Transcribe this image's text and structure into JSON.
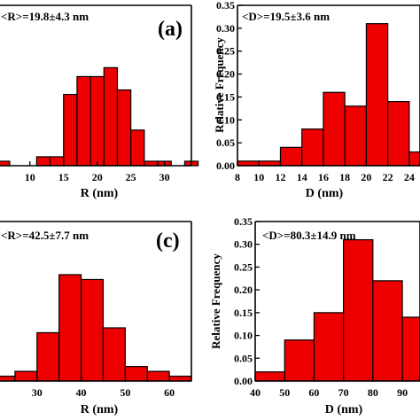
{
  "chart_data": [
    {
      "type": "bar",
      "panel": "(a)",
      "annotation": "<R>=19.8±4.3 nm",
      "xlabel": "R (nm)",
      "ylabel": "",
      "x_ticks": [
        10,
        15,
        20,
        25,
        30
      ],
      "xlim": [
        4.5,
        34
      ],
      "ylim": [
        0,
        0.36
      ],
      "bins": [
        {
          "x0": 5,
          "x1": 7,
          "value": 0.01
        },
        {
          "x0": 9,
          "x1": 11,
          "value": 0.0
        },
        {
          "x0": 11,
          "x1": 13,
          "value": 0.02
        },
        {
          "x0": 13,
          "x1": 15,
          "value": 0.02
        },
        {
          "x0": 15,
          "x1": 17,
          "value": 0.16
        },
        {
          "x0": 17,
          "x1": 19,
          "value": 0.2
        },
        {
          "x0": 19,
          "x1": 21,
          "value": 0.2
        },
        {
          "x0": 21,
          "x1": 23,
          "value": 0.22
        },
        {
          "x0": 23,
          "x1": 25,
          "value": 0.17
        },
        {
          "x0": 25,
          "x1": 27,
          "value": 0.08
        },
        {
          "x0": 27,
          "x1": 29,
          "value": 0.01
        },
        {
          "x0": 29,
          "x1": 31,
          "value": 0.01
        },
        {
          "x0": 33,
          "x1": 35,
          "value": 0.01
        }
      ]
    },
    {
      "type": "bar",
      "panel": "",
      "annotation": "<D>=19.5±3.6 nm",
      "xlabel": "D (nm)",
      "ylabel": "Relative Frequency",
      "x_ticks": [
        8,
        10,
        12,
        14,
        16,
        18,
        20,
        22,
        24
      ],
      "y_ticks": [
        "0.00",
        "0.05",
        "0.10",
        "0.15",
        "0.20",
        "0.25",
        "0.30",
        "0.35"
      ],
      "xlim": [
        8,
        25
      ],
      "ylim": [
        0,
        0.35
      ],
      "bins": [
        {
          "x0": 8,
          "x1": 10,
          "value": 0.01
        },
        {
          "x0": 10,
          "x1": 12,
          "value": 0.01
        },
        {
          "x0": 12,
          "x1": 14,
          "value": 0.04
        },
        {
          "x0": 14,
          "x1": 16,
          "value": 0.08
        },
        {
          "x0": 16,
          "x1": 18,
          "value": 0.16
        },
        {
          "x0": 18,
          "x1": 20,
          "value": 0.13
        },
        {
          "x0": 20,
          "x1": 22,
          "value": 0.31
        },
        {
          "x0": 22,
          "x1": 24,
          "value": 0.14
        },
        {
          "x0": 24,
          "x1": 26,
          "value": 0.03
        }
      ]
    },
    {
      "type": "bar",
      "panel": "(c)",
      "annotation": "<R>=42.5±7.7 nm",
      "xlabel": "R (nm)",
      "ylabel": "",
      "x_ticks": [
        30,
        40,
        50,
        60
      ],
      "xlim": [
        20,
        65
      ],
      "ylim": [
        0,
        0.33
      ],
      "bins": [
        {
          "x0": 20,
          "x1": 25,
          "value": 0.01
        },
        {
          "x0": 25,
          "x1": 30,
          "value": 0.02
        },
        {
          "x0": 30,
          "x1": 35,
          "value": 0.1
        },
        {
          "x0": 35,
          "x1": 40,
          "value": 0.22
        },
        {
          "x0": 40,
          "x1": 45,
          "value": 0.21
        },
        {
          "x0": 45,
          "x1": 50,
          "value": 0.11
        },
        {
          "x0": 50,
          "x1": 55,
          "value": 0.03
        },
        {
          "x0": 55,
          "x1": 60,
          "value": 0.02
        },
        {
          "x0": 60,
          "x1": 65,
          "value": 0.01
        }
      ]
    },
    {
      "type": "bar",
      "panel": "",
      "annotation": "<D>=80.3±14.9 nm",
      "xlabel": "D (nm)",
      "ylabel": "Relative Frequency",
      "x_ticks": [
        40,
        50,
        60,
        70,
        80,
        90
      ],
      "y_ticks": [
        "0.00",
        "0.05",
        "0.10",
        "0.15",
        "0.20",
        "0.25",
        "0.30",
        "0.35"
      ],
      "xlim": [
        40,
        96
      ],
      "ylim": [
        0,
        0.35
      ],
      "bins": [
        {
          "x0": 40,
          "x1": 50,
          "value": 0.02
        },
        {
          "x0": 50,
          "x1": 60,
          "value": 0.09
        },
        {
          "x0": 60,
          "x1": 70,
          "value": 0.15
        },
        {
          "x0": 70,
          "x1": 80,
          "value": 0.31
        },
        {
          "x0": 80,
          "x1": 90,
          "value": 0.22
        },
        {
          "x0": 90,
          "x1": 100,
          "value": 0.14
        }
      ]
    }
  ]
}
